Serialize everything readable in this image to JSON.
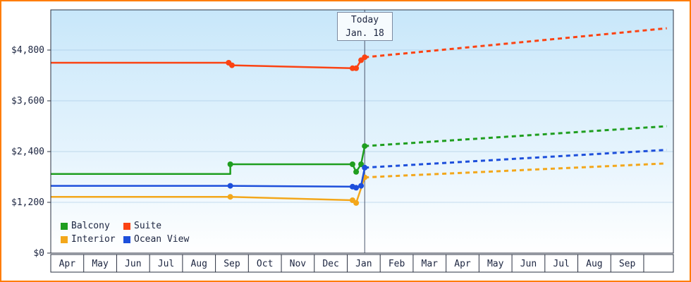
{
  "frame": {
    "border_color": "#ff7d00"
  },
  "chart_data": {
    "type": "line",
    "grid": true,
    "legend_position": "bottom-left",
    "axis_color": "#2a3040",
    "text_color": "#1c2540",
    "today": {
      "x": 9.53,
      "label_line1": "Today",
      "label_line2": "Jan. 18"
    },
    "x_axis": {
      "months": [
        "Apr",
        "May",
        "Jun",
        "Jul",
        "Aug",
        "Sep",
        "Oct",
        "Nov",
        "Dec",
        "Jan",
        "Feb",
        "Mar",
        "Apr",
        "May",
        "Jun",
        "Jul",
        "Aug",
        "Sep"
      ],
      "extent": 18.9
    },
    "y_axis": {
      "max": 5750,
      "ylim": [
        0,
        5750
      ],
      "tick_step": 1200,
      "ticks": [
        {
          "value": 0,
          "label": "$0"
        },
        {
          "value": 1200,
          "label": "$1,200"
        },
        {
          "value": 2400,
          "label": "$2,400"
        },
        {
          "value": 3600,
          "label": "$3,600"
        },
        {
          "value": 4800,
          "label": "$4,800"
        }
      ]
    },
    "series": [
      {
        "name": "Balcony",
        "color": "#1f9e1f",
        "solid": [
          [
            0,
            1870
          ],
          [
            5.45,
            1870
          ],
          [
            5.45,
            2100
          ],
          [
            9.16,
            2100
          ],
          [
            9.27,
            1920
          ],
          [
            9.42,
            2100
          ],
          [
            9.53,
            2530
          ]
        ],
        "points": [
          [
            5.45,
            2100
          ],
          [
            9.16,
            2100
          ],
          [
            9.27,
            1920
          ],
          [
            9.42,
            2100
          ],
          [
            9.53,
            2530
          ]
        ],
        "dashed": [
          [
            9.53,
            2530
          ],
          [
            18.7,
            3000
          ]
        ]
      },
      {
        "name": "Suite",
        "color": "#fb4313",
        "solid": [
          [
            0,
            4500
          ],
          [
            5.4,
            4500
          ],
          [
            5.5,
            4440
          ],
          [
            9.16,
            4370
          ],
          [
            9.27,
            4370
          ],
          [
            9.42,
            4560
          ],
          [
            9.53,
            4630
          ]
        ],
        "points": [
          [
            5.4,
            4500
          ],
          [
            5.5,
            4440
          ],
          [
            9.16,
            4370
          ],
          [
            9.27,
            4370
          ],
          [
            9.42,
            4560
          ],
          [
            9.53,
            4630
          ]
        ],
        "dashed": [
          [
            9.53,
            4630
          ],
          [
            18.7,
            5315
          ]
        ]
      },
      {
        "name": "Interior",
        "color": "#f3a71b",
        "solid": [
          [
            0,
            1330
          ],
          [
            5.45,
            1330
          ],
          [
            9.16,
            1250
          ],
          [
            9.27,
            1185
          ],
          [
            9.53,
            1790
          ]
        ],
        "points": [
          [
            5.45,
            1330
          ],
          [
            9.16,
            1250
          ],
          [
            9.27,
            1185
          ],
          [
            9.53,
            1790
          ]
        ],
        "dashed": [
          [
            9.53,
            1790
          ],
          [
            18.7,
            2120
          ]
        ]
      },
      {
        "name": "Ocean View",
        "color": "#1d4fdb",
        "solid": [
          [
            0,
            1590
          ],
          [
            5.45,
            1590
          ],
          [
            9.16,
            1570
          ],
          [
            9.27,
            1545
          ],
          [
            9.42,
            1590
          ],
          [
            9.53,
            2020
          ]
        ],
        "points": [
          [
            5.45,
            1590
          ],
          [
            9.16,
            1570
          ],
          [
            9.27,
            1545
          ],
          [
            9.42,
            1590
          ],
          [
            9.53,
            2020
          ]
        ],
        "dashed": [
          [
            9.53,
            2020
          ],
          [
            18.7,
            2440
          ]
        ]
      }
    ]
  }
}
